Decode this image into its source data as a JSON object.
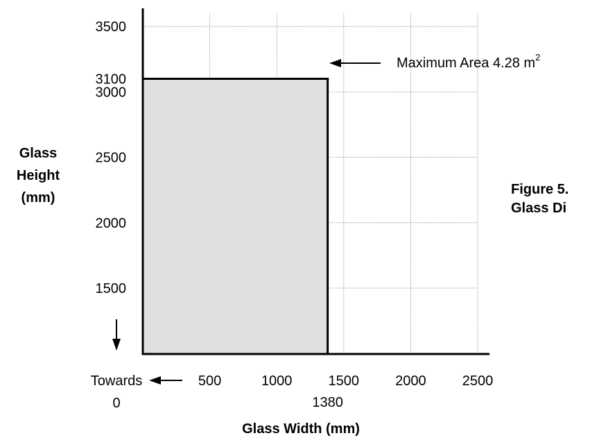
{
  "chart_data": {
    "type": "area",
    "xlabel": "Glass Width (mm)",
    "ylabel_lines": [
      "Glass",
      "Height",
      "(mm)"
    ],
    "x_ticks": [
      500,
      1000,
      1500,
      2000,
      2500
    ],
    "y_ticks": [
      1500,
      2000,
      2500,
      3000,
      3500
    ],
    "x_range": [
      0,
      2600
    ],
    "y_range_shown": [
      1000,
      3600
    ],
    "y_axis_truncated": true,
    "region": {
      "x_max": 1380,
      "y_max": 3100,
      "fill": "#e0e0e0"
    },
    "extra_tick_labels": {
      "x": "1380",
      "y": "3100"
    },
    "annotation": {
      "text": "Maximum Area 4.28 m",
      "superscript": "2"
    },
    "towards_zero": {
      "line1": "Towards",
      "line2": "0"
    },
    "caption_lines": [
      "Figure 5.",
      "Glass Di"
    ],
    "grid": true
  }
}
